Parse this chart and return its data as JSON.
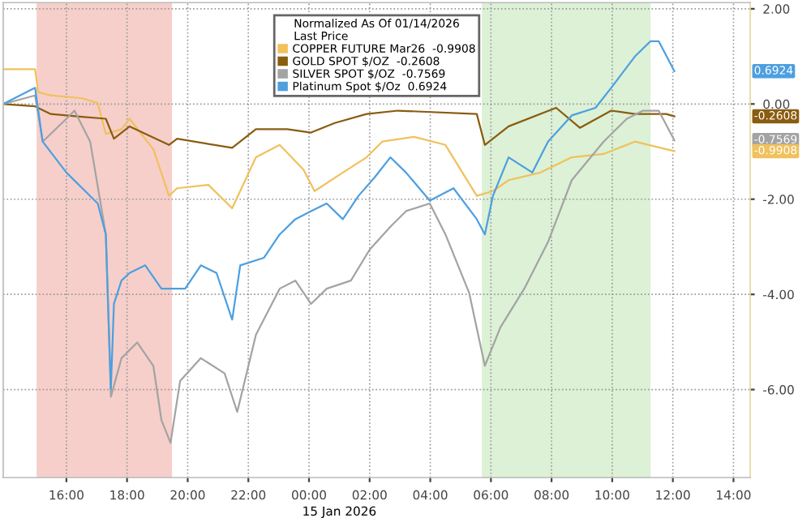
{
  "chart_data": {
    "type": "line",
    "legend_title": "Normalized As Of 01/14/2026\nLast Price",
    "xlabel": "15 Jan 2026",
    "xlim": [
      "2026-01-14T13:55",
      "2026-01-15T14:33"
    ],
    "ylim": [
      -7.85,
      2.13
    ],
    "xticks": [
      {
        "value": "2026-01-14T16:00",
        "label": "16:00"
      },
      {
        "value": "2026-01-14T18:00",
        "label": "18:00"
      },
      {
        "value": "2026-01-14T20:00",
        "label": "20:00"
      },
      {
        "value": "2026-01-14T22:00",
        "label": "22:00"
      },
      {
        "value": "2026-01-15T00:00",
        "label": "00:00"
      },
      {
        "value": "2026-01-15T02:00",
        "label": "02:00"
      },
      {
        "value": "2026-01-15T04:00",
        "label": "04:00"
      },
      {
        "value": "2026-01-15T06:00",
        "label": "06:00"
      },
      {
        "value": "2026-01-15T08:00",
        "label": "08:00"
      },
      {
        "value": "2026-01-15T10:00",
        "label": "10:00"
      },
      {
        "value": "2026-01-15T12:00",
        "label": "12:00"
      },
      {
        "value": "2026-01-15T14:00",
        "label": "14:00"
      }
    ],
    "yticks": [
      {
        "value": 2,
        "label": "2.00"
      },
      {
        "value": 0,
        "label": "0.00"
      },
      {
        "value": -2,
        "label": "-2.00"
      },
      {
        "value": -4,
        "label": "-4.00"
      },
      {
        "value": -6,
        "label": "-6.00"
      }
    ],
    "grid": true,
    "legend": "top",
    "line_style": "solid",
    "marker": "none",
    "bands": [
      {
        "axis": "x",
        "from": "2026-01-14T15:01",
        "to": "2026-01-14T19:29",
        "color": "#f6cfca"
      },
      {
        "axis": "x",
        "from": "2026-01-15T05:42",
        "to": "2026-01-15T11:16",
        "color": "#dcf1d6"
      }
    ],
    "annotations": [
      {
        "text": "0.6924",
        "y": 0.69
      },
      {
        "text": "-0.2608",
        "y": -0.26
      },
      {
        "text": "-0.7569",
        "y": -0.76
      },
      {
        "text": "-0.9908",
        "y": -0.99
      }
    ],
    "series": [
      {
        "name": "COPPER FUTURE Mar26  -0.9908",
        "color": "#f0c15c",
        "x": [
          "2026-01-14T13:55",
          "2026-01-14T14:58",
          "2026-01-14T15:04",
          "2026-01-14T15:29",
          "2026-01-14T16:31",
          "2026-01-14T17:02",
          "2026-01-14T17:18",
          "2026-01-14T17:49",
          "2026-01-14T18:05",
          "2026-01-14T18:52",
          "2026-01-14T19:23",
          "2026-01-14T19:39",
          "2026-01-14T20:41",
          "2026-01-14T21:28",
          "2026-01-14T22:15",
          "2026-01-14T23:02",
          "2026-01-14T23:49",
          "2026-01-15T00:11",
          "2026-01-15T01:07",
          "2026-01-15T01:54",
          "2026-01-15T02:25",
          "2026-01-15T03:28",
          "2026-01-15T04:30",
          "2026-01-15T05:32",
          "2026-01-15T06:04",
          "2026-01-15T06:35",
          "2026-01-15T07:38",
          "2026-01-15T08:40",
          "2026-01-15T09:43",
          "2026-01-15T10:45",
          "2026-01-15T11:47",
          "2026-01-15T12:03"
        ],
        "values": [
          0.73,
          0.73,
          0.25,
          0.18,
          0.12,
          0.02,
          -0.63,
          -0.53,
          -0.31,
          -0.95,
          -1.93,
          -1.77,
          -1.7,
          -2.19,
          -1.12,
          -0.86,
          -1.38,
          -1.83,
          -1.44,
          -1.12,
          -0.79,
          -0.69,
          -0.86,
          -1.93,
          -1.83,
          -1.6,
          -1.44,
          -1.12,
          -1.05,
          -0.79,
          -0.95,
          -0.99
        ]
      },
      {
        "name": "GOLD SPOT $/OZ  -0.2608",
        "color": "#8a5c10",
        "x": [
          "2026-01-14T13:55",
          "2026-01-14T14:58",
          "2026-01-14T15:29",
          "2026-01-14T16:31",
          "2026-01-14T17:18",
          "2026-01-14T17:34",
          "2026-01-14T18:05",
          "2026-01-14T19:23",
          "2026-01-14T19:39",
          "2026-01-14T21:28",
          "2026-01-14T22:15",
          "2026-01-14T23:17",
          "2026-01-15T00:04",
          "2026-01-15T00:51",
          "2026-01-15T01:54",
          "2026-01-15T02:56",
          "2026-01-15T05:32",
          "2026-01-15T05:48",
          "2026-01-15T06:35",
          "2026-01-15T08:09",
          "2026-01-15T08:56",
          "2026-01-15T09:58",
          "2026-01-15T10:45",
          "2026-01-15T11:47",
          "2026-01-15T12:03"
        ],
        "values": [
          0,
          -0.05,
          -0.21,
          -0.27,
          -0.31,
          -0.73,
          -0.47,
          -0.86,
          -0.73,
          -0.92,
          -0.53,
          -0.53,
          -0.6,
          -0.4,
          -0.21,
          -0.14,
          -0.21,
          -0.86,
          -0.47,
          -0.08,
          -0.5,
          -0.14,
          -0.21,
          -0.21,
          -0.26
        ]
      },
      {
        "name": "SILVER SPOT $/OZ  -0.7569",
        "color": "#a3a3a3",
        "x": [
          "2026-01-14T13:55",
          "2026-01-14T14:58",
          "2026-01-14T15:13",
          "2026-01-14T16:00",
          "2026-01-14T16:16",
          "2026-01-14T16:47",
          "2026-01-14T17:18",
          "2026-01-14T17:28",
          "2026-01-14T17:49",
          "2026-01-14T18:20",
          "2026-01-14T18:52",
          "2026-01-14T19:08",
          "2026-01-14T19:26",
          "2026-01-14T19:45",
          "2026-01-14T20:26",
          "2026-01-14T21:13",
          "2026-01-14T21:38",
          "2026-01-14T22:15",
          "2026-01-14T23:02",
          "2026-01-14T23:33",
          "2026-01-15T00:04",
          "2026-01-15T00:35",
          "2026-01-15T01:23",
          "2026-01-15T02:00",
          "2026-01-15T02:41",
          "2026-01-15T03:12",
          "2026-01-15T03:59",
          "2026-01-15T04:30",
          "2026-01-15T05:17",
          "2026-01-15T05:48",
          "2026-01-15T06:19",
          "2026-01-15T07:06",
          "2026-01-15T07:53",
          "2026-01-15T08:40",
          "2026-01-15T09:43",
          "2026-01-15T10:29",
          "2026-01-15T11:01",
          "2026-01-15T11:32",
          "2026-01-15T12:03"
        ],
        "values": [
          0,
          0.18,
          -0.79,
          -0.31,
          -0.14,
          -0.79,
          -2.74,
          -6.15,
          -5.34,
          -5.01,
          -5.5,
          -6.64,
          -7.12,
          -5.82,
          -5.34,
          -5.66,
          -6.47,
          -4.85,
          -3.88,
          -3.71,
          -4.2,
          -3.88,
          -3.71,
          -3.06,
          -2.58,
          -2.25,
          -2.09,
          -2.74,
          -3.97,
          -5.5,
          -4.69,
          -3.88,
          -2.9,
          -1.6,
          -0.79,
          -0.31,
          -0.14,
          -0.14,
          -0.76
        ]
      },
      {
        "name": "Platinum Spot $/Oz  0.6924",
        "color": "#4d9fe0",
        "x": [
          "2026-01-14T13:55",
          "2026-01-14T14:58",
          "2026-01-14T15:13",
          "2026-01-14T16:00",
          "2026-01-14T17:02",
          "2026-01-14T17:18",
          "2026-01-14T17:28",
          "2026-01-14T17:34",
          "2026-01-14T17:49",
          "2026-01-14T18:05",
          "2026-01-14T18:36",
          "2026-01-14T19:08",
          "2026-01-14T19:23",
          "2026-01-14T19:55",
          "2026-01-14T20:26",
          "2026-01-14T20:57",
          "2026-01-14T21:28",
          "2026-01-14T21:44",
          "2026-01-14T22:31",
          "2026-01-14T23:02",
          "2026-01-14T23:33",
          "2026-01-15T00:04",
          "2026-01-15T00:35",
          "2026-01-15T01:07",
          "2026-01-15T01:38",
          "2026-01-15T02:10",
          "2026-01-15T02:41",
          "2026-01-15T03:12",
          "2026-01-15T03:59",
          "2026-01-15T04:46",
          "2026-01-15T05:32",
          "2026-01-15T05:48",
          "2026-01-15T06:04",
          "2026-01-15T06:35",
          "2026-01-15T07:22",
          "2026-01-15T07:53",
          "2026-01-15T08:40",
          "2026-01-15T09:27",
          "2026-01-15T09:58",
          "2026-01-15T10:45",
          "2026-01-15T11:16",
          "2026-01-15T11:32",
          "2026-01-15T12:03"
        ],
        "values": [
          0,
          0.34,
          -0.79,
          -1.44,
          -2.09,
          -2.74,
          -5.99,
          -4.2,
          -3.71,
          -3.55,
          -3.39,
          -3.88,
          -3.88,
          -3.88,
          -3.39,
          -3.55,
          -4.53,
          -3.39,
          -3.23,
          -2.74,
          -2.42,
          -2.25,
          -2.09,
          -2.42,
          -1.93,
          -1.54,
          -1.12,
          -1.44,
          -2.03,
          -1.77,
          -2.42,
          -2.74,
          -1.93,
          -1.12,
          -1.44,
          -0.79,
          -0.24,
          -0.08,
          0.34,
          1.0,
          1.32,
          1.32,
          0.69
        ]
      }
    ]
  }
}
